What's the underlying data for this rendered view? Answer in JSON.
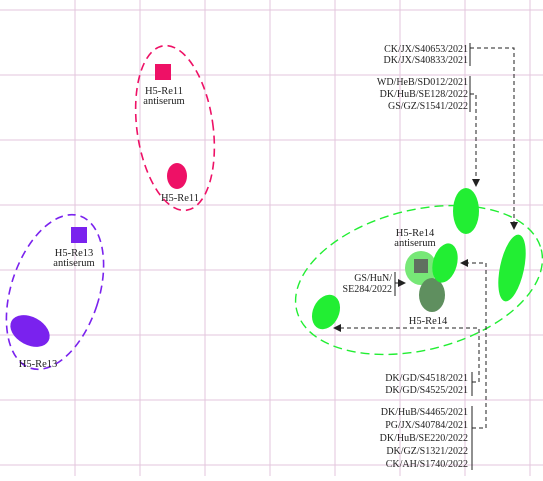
{
  "colors": {
    "grid": "#e3c6dc",
    "re11": "#ee1166",
    "re13": "#7a22ee",
    "re14": "#22ee33",
    "re14_light": "#77e877",
    "re14_dark": "#5f8f5f",
    "arrow": "#222222"
  },
  "groups": {
    "re11": {
      "antiserum_label": "H5-Re11",
      "antiserum_label2": "antiserum",
      "antigen_label": "H5-Re11"
    },
    "re13": {
      "antiserum_label": "H5-Re13",
      "antiserum_label2": "antiserum",
      "antigen_label": "H5-Re13"
    },
    "re14": {
      "antiserum_label": "H5-Re14",
      "antiserum_label2": "antiserum",
      "antigen_label": "H5-Re14"
    }
  },
  "strain_groups": {
    "group1": [
      "CK/JX/S40653/2021",
      "DK/JX/S40833/2021"
    ],
    "group2": [
      "WD/HeB/SD012/2021",
      "DK/HuB/SE128/2022",
      "GS/GZ/S1541/2022"
    ],
    "group3": [
      "GS/HuN/",
      "SE284/2022"
    ],
    "group4": [
      "DK/GD/S4518/2021",
      "DK/GD/S4525/2021"
    ],
    "group5": [
      "DK/HuB/S4465/2021",
      "PG/JX/S40784/2021",
      "DK/HuB/SE220/2022",
      "DK/GZ/S1321/2022",
      "CK/AH/S1740/2022"
    ]
  }
}
